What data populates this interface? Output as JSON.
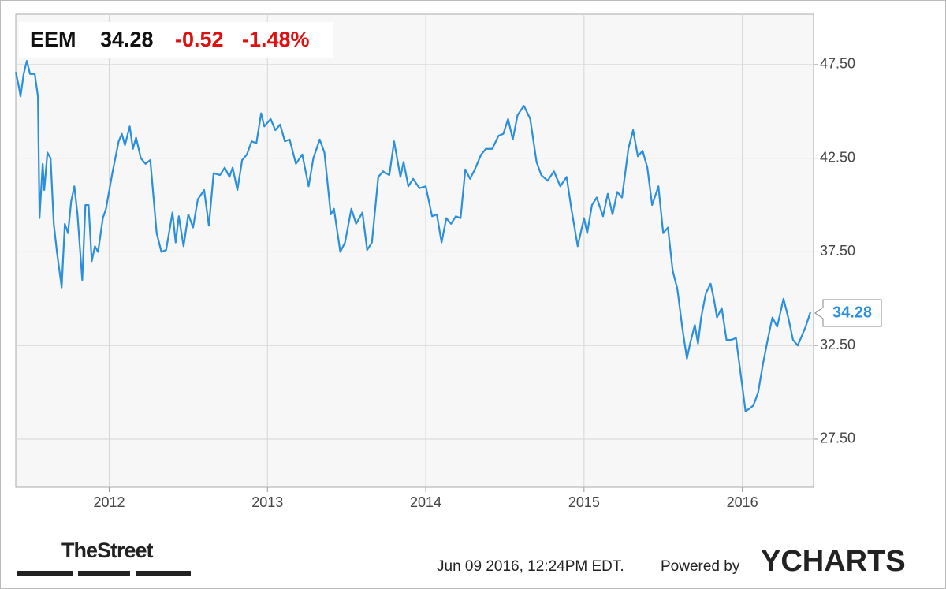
{
  "chart_data": {
    "type": "line",
    "header": {
      "symbol": "EEM",
      "price": "34.28",
      "change": "-0.52",
      "change_percent": "-1.48%"
    },
    "xlim": [
      2011.41,
      2016.45
    ],
    "xticks": [
      2012,
      2013,
      2014,
      2015,
      2016
    ],
    "ylim": [
      24.93,
      50.19
    ],
    "yticks": [
      {
        "value": 27.5,
        "label": "27.50"
      },
      {
        "value": 32.5,
        "label": "32.50"
      },
      {
        "value": 37.5,
        "label": "37.50"
      },
      {
        "value": 42.5,
        "label": "42.50"
      },
      {
        "value": 47.5,
        "label": "47.50"
      }
    ],
    "grid": true,
    "series": [
      {
        "color": "#2b8fdd",
        "x": [
          2011.41,
          2011.43,
          2011.44,
          2011.46,
          2011.48,
          2011.5,
          2011.53,
          2011.55,
          2011.56,
          2011.58,
          2011.59,
          2011.61,
          2011.63,
          2011.65,
          2011.67,
          2011.7,
          2011.72,
          2011.74,
          2011.76,
          2011.78,
          2011.8,
          2011.83,
          2011.85,
          2011.87,
          2011.89,
          2011.91,
          2011.93,
          2011.96,
          2011.98,
          2012.02,
          2012.06,
          2012.08,
          2012.1,
          2012.13,
          2012.15,
          2012.17,
          2012.2,
          2012.23,
          2012.26,
          2012.3,
          2012.33,
          2012.36,
          2012.4,
          2012.42,
          2012.44,
          2012.47,
          2012.5,
          2012.53,
          2012.56,
          2012.6,
          2012.63,
          2012.66,
          2012.7,
          2012.73,
          2012.76,
          2012.78,
          2012.81,
          2012.84,
          2012.87,
          2012.9,
          2012.93,
          2012.96,
          2012.98,
          2013.02,
          2013.05,
          2013.08,
          2013.11,
          2013.14,
          2013.18,
          2013.22,
          2013.26,
          2013.29,
          2013.33,
          2013.36,
          2013.4,
          2013.42,
          2013.46,
          2013.49,
          2013.53,
          2013.56,
          2013.6,
          2013.63,
          2013.66,
          2013.7,
          2013.73,
          2013.77,
          2013.8,
          2013.84,
          2013.86,
          2013.89,
          2013.92,
          2013.96,
          2014.0,
          2014.04,
          2014.07,
          2014.1,
          2014.13,
          2014.16,
          2014.19,
          2014.22,
          2014.25,
          2014.28,
          2014.31,
          2014.35,
          2014.38,
          2014.42,
          2014.46,
          2014.49,
          2014.52,
          2014.55,
          2014.58,
          2014.62,
          2014.66,
          2014.7,
          2014.73,
          2014.77,
          2014.81,
          2014.85,
          2014.89,
          2014.92,
          2014.96,
          2015.0,
          2015.02,
          2015.05,
          2015.08,
          2015.12,
          2015.15,
          2015.18,
          2015.21,
          2015.24,
          2015.28,
          2015.31,
          2015.34,
          2015.37,
          2015.4,
          2015.43,
          2015.47,
          2015.5,
          2015.53,
          2015.56,
          2015.59,
          2015.62,
          2015.65,
          2015.67,
          2015.7,
          2015.72,
          2015.74,
          2015.77,
          2015.8,
          2015.82,
          2015.84,
          2015.87,
          2015.9,
          2015.93,
          2015.96,
          2016.02,
          2016.04,
          2016.07,
          2016.1,
          2016.13,
          2016.16,
          2016.19,
          2016.22,
          2016.26,
          2016.29,
          2016.32,
          2016.35,
          2016.4,
          2016.43
        ],
        "values": [
          47.1,
          46.3,
          45.8,
          47.0,
          47.7,
          47.0,
          47.0,
          45.8,
          39.3,
          42.2,
          40.8,
          42.8,
          42.5,
          39.0,
          37.5,
          35.6,
          39.0,
          38.5,
          40.2,
          41.0,
          39.5,
          36.0,
          40.0,
          40.0,
          37.0,
          37.8,
          37.5,
          39.3,
          39.8,
          41.7,
          43.4,
          43.8,
          43.2,
          44.2,
          43.0,
          43.6,
          42.5,
          42.2,
          42.4,
          38.5,
          37.5,
          37.6,
          39.6,
          38.0,
          39.4,
          37.8,
          39.5,
          38.8,
          40.3,
          40.8,
          38.9,
          41.7,
          41.6,
          42.0,
          41.5,
          42.0,
          40.8,
          42.4,
          42.7,
          43.4,
          43.3,
          44.9,
          44.2,
          44.6,
          44.0,
          44.3,
          43.4,
          43.5,
          42.2,
          42.7,
          41.0,
          42.5,
          43.5,
          42.8,
          39.5,
          39.8,
          37.5,
          38.0,
          39.8,
          39.0,
          39.6,
          37.6,
          38.0,
          41.5,
          41.8,
          41.6,
          43.4,
          41.5,
          42.3,
          41.0,
          41.4,
          40.9,
          41.0,
          39.4,
          39.5,
          38.0,
          39.3,
          39.0,
          39.4,
          39.3,
          41.9,
          41.4,
          41.9,
          42.7,
          43.0,
          43.0,
          43.7,
          43.8,
          44.6,
          43.5,
          44.8,
          45.3,
          44.6,
          42.3,
          41.6,
          41.3,
          41.8,
          41.0,
          41.5,
          39.8,
          37.8,
          39.3,
          38.5,
          40.0,
          40.4,
          39.4,
          40.6,
          39.5,
          40.7,
          40.4,
          43.0,
          44.0,
          42.6,
          42.9,
          42.0,
          40.0,
          41.0,
          38.5,
          38.8,
          36.5,
          35.5,
          33.5,
          31.8,
          32.6,
          33.6,
          32.6,
          34.0,
          35.3,
          35.8,
          35.0,
          34.0,
          34.5,
          32.8,
          32.8,
          32.9,
          29.0,
          29.1,
          29.3,
          30.0,
          31.5,
          32.8,
          34.0,
          33.5,
          35.0,
          34.0,
          32.8,
          32.5,
          33.5,
          34.28
        ]
      }
    ]
  },
  "footer": {
    "brand": "TheStreet",
    "timestamp": "Jun 09 2016, 12:24PM EDT.",
    "powered_by": "Powered by",
    "provider": "YCHARTS"
  }
}
